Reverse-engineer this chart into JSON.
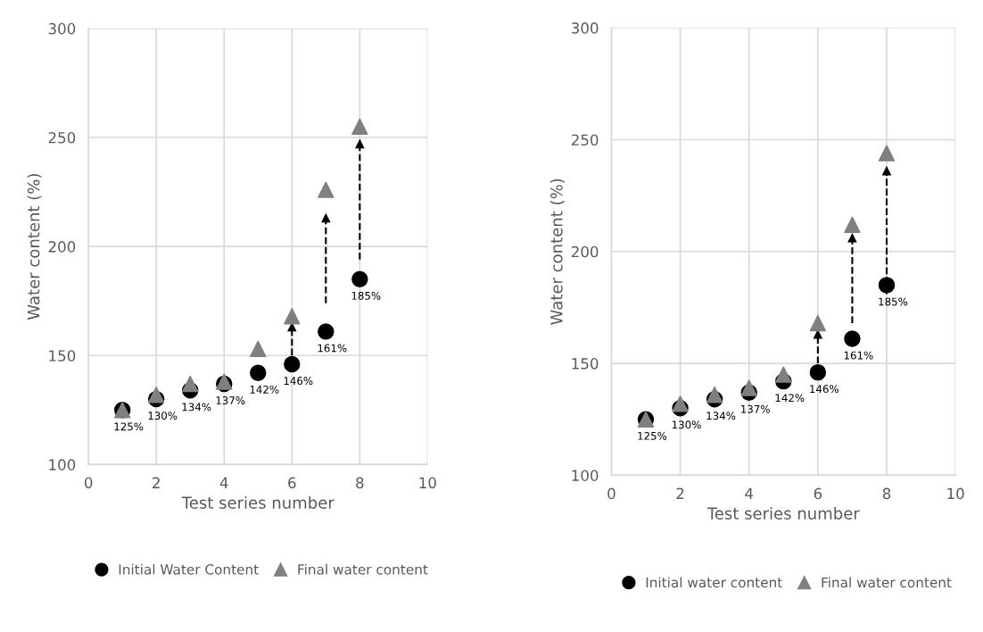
{
  "chart_data": [
    {
      "type": "scatter",
      "xlabel": "Test series number",
      "ylabel": "Water content (%)",
      "xlim": [
        0,
        10
      ],
      "ylim": [
        100,
        300
      ],
      "xticks": [
        0,
        2,
        4,
        6,
        8,
        10
      ],
      "yticks": [
        100,
        150,
        200,
        250,
        300
      ],
      "grid": true,
      "legend": "bottom",
      "series": [
        {
          "name": "Initial Water Content",
          "color": "#000000",
          "marker": "circle",
          "x": [
            1,
            2,
            3,
            4,
            5,
            6,
            7,
            8
          ],
          "values": [
            125,
            130,
            134,
            137,
            142,
            146,
            161,
            185
          ],
          "value_labels": [
            "125%",
            "130%",
            "134%",
            "137%",
            "142%",
            "146%",
            "161%",
            "185%"
          ]
        },
        {
          "name": "Final water content",
          "color": "#808080",
          "marker": "triangle",
          "x": [
            1,
            2,
            3,
            4,
            5,
            6,
            7,
            8
          ],
          "values": [
            125,
            132,
            137,
            138,
            153,
            168,
            226,
            255
          ]
        },
        {
          "type": "line",
          "color": "#000000",
          "line_style": "dashed",
          "x": [
            6,
            6
          ],
          "values": [
            150,
            163
          ]
        },
        {
          "type": "line",
          "color": "#000000",
          "line_style": "dashed",
          "x": [
            7,
            7
          ],
          "values": [
            174,
            213
          ]
        },
        {
          "type": "line",
          "color": "#000000",
          "line_style": "dashed",
          "x": [
            8,
            8
          ],
          "values": [
            194,
            247
          ]
        }
      ]
    },
    {
      "type": "scatter",
      "xlabel": "Test series number",
      "ylabel": "Water content (%)",
      "xlim": [
        0,
        10
      ],
      "ylim": [
        100,
        300
      ],
      "xticks": [
        0,
        2,
        4,
        6,
        8,
        10
      ],
      "yticks": [
        100,
        150,
        200,
        250,
        300
      ],
      "grid": true,
      "legend": "bottom",
      "series": [
        {
          "name": "Initial water content",
          "color": "#000000",
          "marker": "circle",
          "x": [
            1,
            2,
            3,
            4,
            5,
            6,
            7,
            8
          ],
          "values": [
            125,
            130,
            134,
            137,
            142,
            146,
            161,
            185
          ],
          "value_labels": [
            "125%",
            "130%",
            "134%",
            "137%",
            "142%",
            "146%",
            "161%",
            "185%"
          ]
        },
        {
          "name": "Final water content",
          "color": "#808080",
          "marker": "triangle",
          "x": [
            1,
            2,
            3,
            4,
            5,
            6,
            7,
            8
          ],
          "values": [
            125,
            132,
            136,
            139,
            145,
            168,
            212,
            244
          ]
        },
        {
          "type": "line",
          "color": "#000000",
          "line_style": "dashed",
          "x": [
            6,
            6
          ],
          "values": [
            150,
            163
          ]
        },
        {
          "type": "line",
          "color": "#000000",
          "line_style": "dashed",
          "x": [
            7,
            7
          ],
          "values": [
            168,
            206
          ]
        },
        {
          "type": "line",
          "color": "#000000",
          "line_style": "dashed",
          "x": [
            8,
            8
          ],
          "values": [
            181,
            236
          ]
        }
      ]
    }
  ]
}
